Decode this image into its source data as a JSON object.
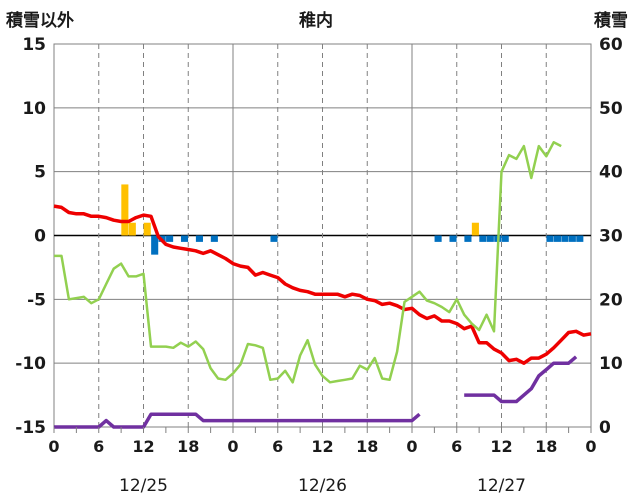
{
  "chart_data": {
    "type": "line+bar",
    "title": "稚内",
    "left_axis_label": "積雪以外",
    "right_axis_label": "積雪",
    "left_ylim": [
      -15,
      15
    ],
    "left_ticks": [
      15,
      10,
      5,
      0,
      -5,
      -10,
      -15
    ],
    "right_ylim": [
      0,
      60
    ],
    "right_ticks": [
      60,
      50,
      40,
      30,
      20,
      10,
      0
    ],
    "x_hours_range": [
      0,
      72
    ],
    "x_tick_every_hours": 3,
    "x_tick_labels": [
      "0",
      "6",
      "12",
      "18",
      "0",
      "6",
      "12",
      "18",
      "0",
      "6",
      "12",
      "18",
      "0"
    ],
    "date_labels": [
      "12/25",
      "12/26",
      "12/27"
    ],
    "grid": "dashed vertical lines every 6 hours, solid at day boundaries",
    "colors": {
      "temperature": "#ee0000",
      "humidity_like": "#92d050",
      "snow_depth": "#7030a0",
      "precip_bar": "#ffc000",
      "negative_bar": "#0070c0"
    },
    "series": [
      {
        "axis": "left",
        "values": [
          [
            0,
            2.3
          ],
          [
            1,
            2.2
          ],
          [
            2,
            1.8
          ],
          [
            3,
            1.7
          ],
          [
            4,
            1.7
          ],
          [
            5,
            1.5
          ],
          [
            6,
            1.5
          ],
          [
            7,
            1.4
          ],
          [
            8,
            1.2
          ],
          [
            9,
            1.1
          ],
          [
            10,
            1.1
          ],
          [
            11,
            1.4
          ],
          [
            12,
            1.6
          ],
          [
            13,
            1.5
          ],
          [
            14,
            -0.1
          ],
          [
            15,
            -0.7
          ],
          [
            16,
            -0.9
          ],
          [
            17,
            -1.0
          ],
          [
            18,
            -1.1
          ],
          [
            19,
            -1.2
          ],
          [
            20,
            -1.4
          ],
          [
            21,
            -1.2
          ],
          [
            22,
            -1.5
          ],
          [
            23,
            -1.8
          ],
          [
            24,
            -2.2
          ],
          [
            25,
            -2.4
          ],
          [
            26,
            -2.5
          ],
          [
            27,
            -3.1
          ],
          [
            28,
            -2.9
          ],
          [
            29,
            -3.1
          ],
          [
            30,
            -3.3
          ],
          [
            31,
            -3.8
          ],
          [
            32,
            -4.1
          ],
          [
            33,
            -4.3
          ],
          [
            34,
            -4.4
          ],
          [
            35,
            -4.6
          ],
          [
            36,
            -4.6
          ],
          [
            37,
            -4.6
          ],
          [
            38,
            -4.6
          ],
          [
            39,
            -4.8
          ],
          [
            40,
            -4.6
          ],
          [
            41,
            -4.7
          ],
          [
            42,
            -5.0
          ],
          [
            43,
            -5.1
          ],
          [
            44,
            -5.4
          ],
          [
            45,
            -5.3
          ],
          [
            46,
            -5.5
          ],
          [
            47,
            -5.8
          ],
          [
            48,
            -5.7
          ],
          [
            49,
            -6.2
          ],
          [
            50,
            -6.5
          ],
          [
            51,
            -6.3
          ],
          [
            52,
            -6.7
          ],
          [
            53,
            -6.7
          ],
          [
            54,
            -6.9
          ],
          [
            55,
            -7.3
          ],
          [
            56,
            -7.1
          ],
          [
            57,
            -8.4
          ],
          [
            58,
            -8.4
          ],
          [
            59,
            -8.9
          ],
          [
            60,
            -9.2
          ],
          [
            61,
            -9.8
          ],
          [
            62,
            -9.7
          ],
          [
            63,
            -10.0
          ],
          [
            64,
            -9.6
          ],
          [
            65,
            -9.6
          ],
          [
            66,
            -9.3
          ],
          [
            67,
            -8.8
          ],
          [
            68,
            -8.2
          ],
          [
            69,
            -7.6
          ],
          [
            70,
            -7.5
          ],
          [
            71,
            -7.8
          ],
          [
            72,
            -7.7
          ]
        ]
      },
      {
        "axis": "left",
        "values": [
          [
            0,
            -1.6
          ],
          [
            1,
            -1.6
          ],
          [
            2,
            -5.0
          ],
          [
            3,
            -4.9
          ],
          [
            4,
            -4.8
          ],
          [
            5,
            -5.3
          ],
          [
            6,
            -5.0
          ],
          [
            7,
            -3.8
          ],
          [
            8,
            -2.6
          ],
          [
            9,
            -2.2
          ],
          [
            10,
            -3.2
          ],
          [
            11,
            -3.2
          ],
          [
            12,
            -3.0
          ],
          [
            13,
            -8.7
          ],
          [
            14,
            -8.7
          ],
          [
            15,
            -8.7
          ],
          [
            16,
            -8.8
          ],
          [
            17,
            -8.4
          ],
          [
            18,
            -8.7
          ],
          [
            19,
            -8.3
          ],
          [
            20,
            -8.9
          ],
          [
            21,
            -10.4
          ],
          [
            22,
            -11.2
          ],
          [
            23,
            -11.3
          ],
          [
            24,
            -10.8
          ],
          [
            25,
            -10.1
          ],
          [
            26,
            -8.5
          ],
          [
            27,
            -8.6
          ],
          [
            28,
            -8.8
          ],
          [
            29,
            -11.3
          ],
          [
            30,
            -11.2
          ],
          [
            31,
            -10.6
          ],
          [
            32,
            -11.5
          ],
          [
            33,
            -9.4
          ],
          [
            34,
            -8.2
          ],
          [
            35,
            -10.1
          ],
          [
            36,
            -11.0
          ],
          [
            37,
            -11.5
          ],
          [
            38,
            -11.4
          ],
          [
            39,
            -11.3
          ],
          [
            40,
            -11.2
          ],
          [
            41,
            -10.2
          ],
          [
            42,
            -10.5
          ],
          [
            43,
            -9.6
          ],
          [
            44,
            -11.2
          ],
          [
            45,
            -11.3
          ],
          [
            46,
            -9.1
          ],
          [
            47,
            -5.2
          ],
          [
            48,
            -4.8
          ],
          [
            49,
            -4.4
          ],
          [
            50,
            -5.1
          ],
          [
            51,
            -5.3
          ],
          [
            52,
            -5.6
          ],
          [
            53,
            -6.0
          ],
          [
            54,
            -5.0
          ],
          [
            55,
            -6.2
          ],
          [
            56,
            -6.9
          ],
          [
            57,
            -7.4
          ],
          [
            58,
            -6.2
          ],
          [
            59,
            -7.5
          ],
          [
            60,
            5.0
          ],
          [
            61,
            6.3
          ],
          [
            62,
            6.0
          ],
          [
            63,
            7.0
          ],
          [
            64,
            4.5
          ],
          [
            65,
            7.0
          ],
          [
            66,
            6.2
          ],
          [
            67,
            7.3
          ],
          [
            68,
            7.0
          ]
        ]
      },
      {
        "axis": "right",
        "values": [
          [
            0,
            0
          ],
          [
            1,
            0
          ],
          [
            2,
            0
          ],
          [
            3,
            0
          ],
          [
            4,
            0
          ],
          [
            5,
            0
          ],
          [
            6,
            0
          ],
          [
            7,
            1
          ],
          [
            8,
            0
          ],
          [
            9,
            0
          ],
          [
            10,
            0
          ],
          [
            11,
            0
          ],
          [
            12,
            0
          ],
          [
            13,
            2
          ],
          [
            14,
            2
          ],
          [
            15,
            2
          ],
          [
            16,
            2
          ],
          [
            17,
            2
          ],
          [
            18,
            2
          ],
          [
            19,
            2
          ],
          [
            20,
            1
          ],
          [
            21,
            1
          ],
          [
            22,
            1
          ],
          [
            23,
            1
          ],
          [
            24,
            1
          ],
          [
            25,
            1
          ],
          [
            26,
            1
          ],
          [
            27,
            1
          ],
          [
            28,
            1
          ],
          [
            29,
            1
          ],
          [
            30,
            1
          ],
          [
            31,
            1
          ],
          [
            32,
            1
          ],
          [
            33,
            1
          ],
          [
            34,
            1
          ],
          [
            35,
            1
          ],
          [
            36,
            1
          ],
          [
            37,
            1
          ],
          [
            38,
            1
          ],
          [
            39,
            1
          ],
          [
            40,
            1
          ],
          [
            41,
            1
          ],
          [
            42,
            1
          ],
          [
            43,
            1
          ],
          [
            44,
            1
          ],
          [
            45,
            1
          ],
          [
            46,
            1
          ],
          [
            47,
            1
          ],
          [
            48,
            1
          ],
          [
            49,
            2
          ],
          null,
          [
            55,
            5
          ],
          [
            56,
            5
          ],
          [
            57,
            5
          ],
          [
            58,
            5
          ],
          [
            59,
            5
          ],
          [
            60,
            4
          ],
          [
            61,
            4
          ],
          [
            62,
            4
          ],
          [
            63,
            5
          ],
          [
            64,
            6
          ],
          [
            65,
            8
          ],
          [
            66,
            9
          ],
          [
            67,
            10
          ],
          [
            68,
            10
          ],
          [
            69,
            10
          ],
          [
            70,
            11
          ]
        ]
      }
    ],
    "bars": [
      {
        "axis": "left",
        "color_key": "precip_bar",
        "values": [
          [
            9.5,
            4.0
          ],
          [
            10.5,
            1.0
          ],
          [
            12.5,
            1.0
          ],
          [
            56.5,
            1.0
          ]
        ]
      },
      {
        "axis": "left",
        "color_key": "negative_bar",
        "values": [
          [
            13.5,
            -1.5
          ],
          [
            14.5,
            -0.5
          ],
          [
            15.5,
            -0.5
          ],
          [
            17.5,
            -0.5
          ],
          [
            19.5,
            -0.5
          ],
          [
            21.5,
            -0.5
          ],
          [
            29.5,
            -0.5
          ],
          [
            51.5,
            -0.5
          ],
          [
            53.5,
            -0.5
          ],
          [
            55.5,
            -0.5
          ],
          [
            57.5,
            -0.5
          ],
          [
            58.5,
            -0.5
          ],
          [
            59.5,
            -0.5
          ],
          [
            60.5,
            -0.5
          ],
          [
            66.5,
            -0.5
          ],
          [
            67.5,
            -0.5
          ],
          [
            68.5,
            -0.5
          ],
          [
            69.5,
            -0.5
          ],
          [
            70.5,
            -0.5
          ]
        ]
      }
    ]
  }
}
